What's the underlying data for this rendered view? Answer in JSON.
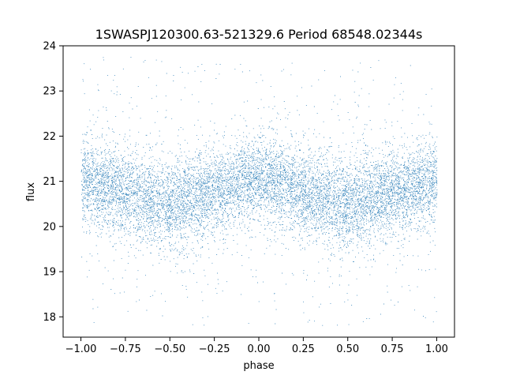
{
  "chart_data": {
    "type": "scatter",
    "title": "1SWASPJ120300.63-521329.6 Period 68548.02344s",
    "xlabel": "phase",
    "ylabel": "flux",
    "xlim": [
      -1.1,
      1.1
    ],
    "ylim": [
      17.55,
      24.0
    ],
    "xticks": [
      -1.0,
      -0.75,
      -0.5,
      -0.25,
      0.0,
      0.25,
      0.5,
      0.75,
      1.0
    ],
    "xtick_labels": [
      "−1.00",
      "−0.75",
      "−0.50",
      "−0.25",
      "0.00",
      "0.25",
      "0.50",
      "0.75",
      "1.00"
    ],
    "yticks": [
      18,
      19,
      20,
      21,
      22,
      23,
      24
    ],
    "ytick_labels": [
      "18",
      "19",
      "20",
      "21",
      "22",
      "23",
      "24"
    ],
    "grid": false,
    "marker_color": "#1f77b4",
    "series": [
      {
        "x": [
          -1.0,
          -0.75,
          -0.5,
          -0.25,
          0.0,
          0.25,
          0.5,
          0.75,
          1.0
        ],
        "y": [
          21.0,
          20.75,
          20.45,
          20.75,
          21.1,
          20.75,
          20.45,
          20.75,
          21.0
        ],
        "y_spread": [
          0.45,
          0.45,
          0.5,
          0.45,
          0.45,
          0.45,
          0.5,
          0.45,
          0.45
        ]
      }
    ]
  }
}
